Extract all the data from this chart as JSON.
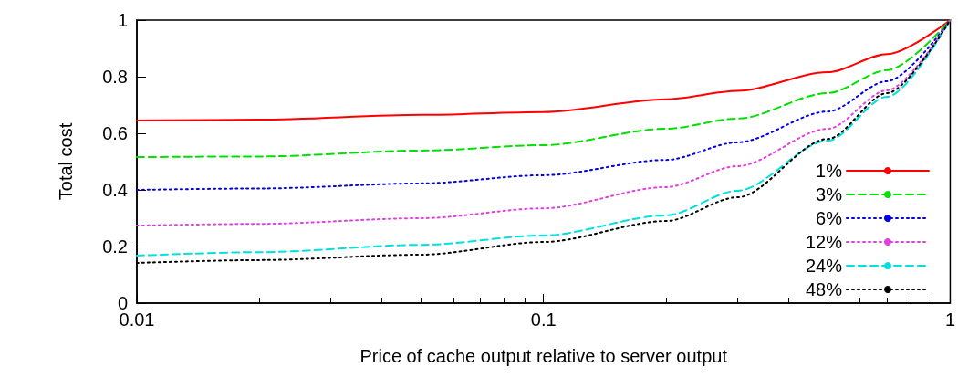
{
  "chart_data": {
    "type": "line",
    "xlabel": "Price of cache output relative to server output",
    "ylabel": "Total cost",
    "x": [
      0.01,
      0.02,
      0.05,
      0.1,
      0.2,
      0.3,
      0.5,
      0.7,
      1
    ],
    "series": [
      {
        "name": "1%",
        "color": "#ff0000",
        "line_style": "solid",
        "values": [
          0.645,
          0.648,
          0.665,
          0.675,
          0.72,
          0.75,
          0.816,
          0.88,
          1
        ]
      },
      {
        "name": "3%",
        "color": "#00e000",
        "line_style": "dashed",
        "values": [
          0.516,
          0.518,
          0.539,
          0.558,
          0.616,
          0.652,
          0.742,
          0.823,
          1
        ]
      },
      {
        "name": "6%",
        "color": "#0000e0",
        "line_style": "dotted",
        "values": [
          0.4,
          0.405,
          0.423,
          0.452,
          0.506,
          0.568,
          0.677,
          0.784,
          1
        ]
      },
      {
        "name": "12%",
        "color": "#e040e0",
        "line_style": "dotted",
        "values": [
          0.274,
          0.28,
          0.3,
          0.335,
          0.41,
          0.484,
          0.616,
          0.752,
          1
        ]
      },
      {
        "name": "24%",
        "color": "#00e0e0",
        "line_style": "dashed",
        "values": [
          0.168,
          0.18,
          0.206,
          0.239,
          0.31,
          0.397,
          0.574,
          0.729,
          1
        ]
      },
      {
        "name": "48%",
        "color": "#000000",
        "line_style": "dotted",
        "values": [
          0.142,
          0.152,
          0.171,
          0.216,
          0.29,
          0.374,
          0.58,
          0.742,
          1
        ]
      }
    ],
    "log": "x",
    "xlim": [
      0.01,
      1
    ],
    "xticks": [
      0.01,
      0.1,
      1
    ],
    "ylim": [
      0,
      1
    ],
    "yticks": [
      0,
      0.2,
      0.4,
      0.6,
      0.8,
      1
    ],
    "grid": false,
    "legend": "bottom right",
    "marker": "none"
  }
}
